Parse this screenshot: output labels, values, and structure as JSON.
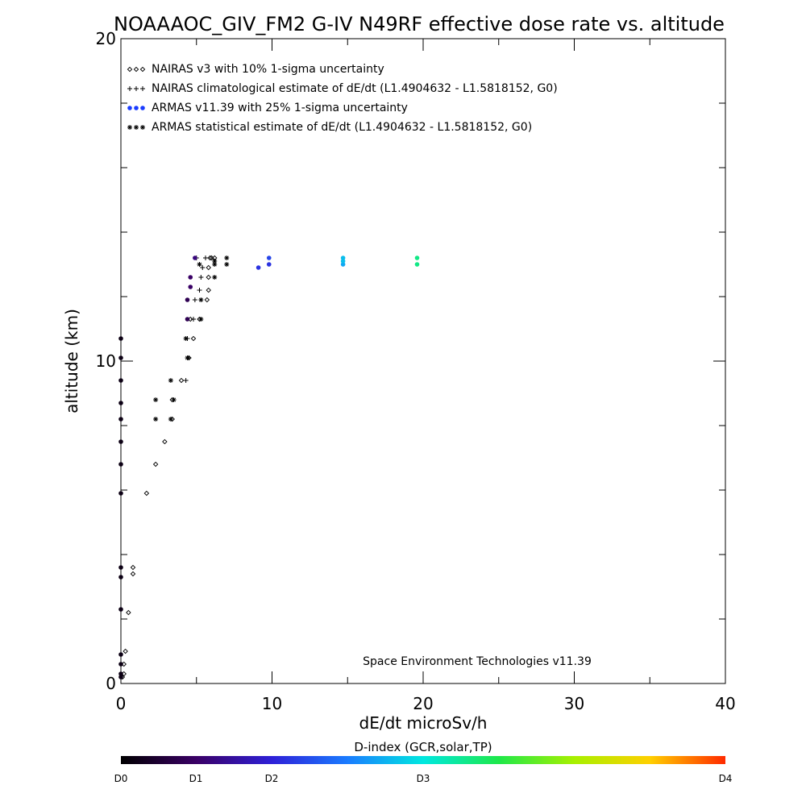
{
  "chart_data": {
    "type": "scatter",
    "title": "NOAAAOC_GIV_FM2 G-IV   N49RF  effective dose rate vs. altitude",
    "xlabel": "dE/dt microSv/h",
    "ylabel": "altitude (km)",
    "xlim": [
      0,
      40
    ],
    "ylim": [
      0,
      20
    ],
    "x_ticks": [
      0,
      10,
      20,
      30,
      40
    ],
    "y_ticks": [
      0,
      10,
      20
    ],
    "x_tick_labels": [
      "0",
      "10",
      "20",
      "30",
      "40"
    ],
    "y_tick_labels": [
      "0",
      "10",
      "20"
    ],
    "grid": false,
    "legend_position": "top-left",
    "annotation": "Space Environment Technologies v11.39",
    "legend": [
      {
        "label": "NAIRAS v3 with 10% 1-sigma uncertainty",
        "marker": "diamond"
      },
      {
        "label": "NAIRAS climatological estimate of dE/dt (L1.4904632 - L1.5818152, G0)",
        "marker": "plus"
      },
      {
        "label": "ARMAS v11.39 with 25% 1-sigma uncertainty",
        "marker": "dot"
      },
      {
        "label": "ARMAS statistical estimate of dE/dt (L1.4904632 - L1.5818152, G0)",
        "marker": "asterisk"
      }
    ],
    "colorbar": {
      "title": "D-index (GCR,solar,TP)",
      "labels": [
        "D0",
        "D1",
        "D2",
        "D3",
        "D4"
      ],
      "label_values": [
        0,
        1,
        2,
        3,
        4
      ],
      "range": [
        0,
        4
      ]
    },
    "series": [
      {
        "marker": "diamond",
        "points": [
          [
            0.1,
            0.2
          ],
          [
            0.2,
            0.3
          ],
          [
            0.2,
            0.6
          ],
          [
            0.3,
            1.0
          ],
          [
            0.5,
            2.2
          ],
          [
            0.8,
            3.4
          ],
          [
            0.8,
            3.6
          ],
          [
            1.7,
            5.9
          ],
          [
            2.3,
            6.8
          ],
          [
            2.9,
            7.5
          ],
          [
            3.4,
            8.2
          ],
          [
            3.4,
            8.8
          ],
          [
            4.0,
            9.4
          ],
          [
            4.5,
            10.1
          ],
          [
            4.8,
            10.7
          ],
          [
            4.6,
            11.3
          ],
          [
            5.2,
            11.3
          ],
          [
            5.7,
            11.9
          ],
          [
            5.8,
            12.2
          ],
          [
            5.8,
            12.6
          ],
          [
            5.8,
            12.9
          ],
          [
            5.9,
            13.2
          ],
          [
            6.0,
            13.2
          ],
          [
            6.2,
            13.2
          ]
        ]
      },
      {
        "marker": "plus",
        "points": [
          [
            4.3,
            9.4
          ],
          [
            4.5,
            10.1
          ],
          [
            4.4,
            10.7
          ],
          [
            4.8,
            11.3
          ],
          [
            4.9,
            11.9
          ],
          [
            5.2,
            12.2
          ],
          [
            5.3,
            12.6
          ],
          [
            5.0,
            13.2
          ],
          [
            5.4,
            12.9
          ],
          [
            5.6,
            13.2
          ]
        ]
      },
      {
        "marker": "dot",
        "points": [
          [
            0.0,
            0.2
          ],
          [
            0.0,
            0.3
          ],
          [
            0.0,
            0.6
          ],
          [
            0.0,
            0.9
          ],
          [
            0.0,
            2.3
          ],
          [
            0.0,
            3.3
          ],
          [
            0.0,
            3.6
          ],
          [
            0.0,
            5.9
          ],
          [
            0.0,
            6.8
          ],
          [
            0.0,
            7.5
          ],
          [
            0.0,
            8.2
          ],
          [
            0.0,
            8.7
          ],
          [
            0.0,
            9.4
          ],
          [
            0.0,
            10.1
          ],
          [
            0.0,
            10.7
          ],
          [
            4.4,
            11.3
          ],
          [
            4.4,
            11.9
          ],
          [
            4.6,
            12.3
          ],
          [
            4.6,
            12.6
          ],
          [
            4.9,
            13.2
          ],
          [
            9.1,
            12.9
          ],
          [
            9.8,
            13.2
          ],
          [
            9.8,
            13.0
          ],
          [
            14.7,
            13.2
          ],
          [
            14.7,
            13.0
          ],
          [
            14.7,
            13.1
          ],
          [
            19.6,
            13.2
          ],
          [
            19.6,
            13.0
          ]
        ],
        "d_index": [
          0.1,
          0.1,
          0.1,
          0.1,
          0.1,
          0.1,
          0.1,
          0.1,
          0.1,
          0.1,
          0.1,
          0.1,
          0.1,
          0.1,
          0.1,
          0.4,
          0.4,
          0.5,
          0.5,
          0.6,
          1.1,
          1.2,
          1.1,
          1.8,
          1.7,
          1.8,
          2.3,
          2.3
        ]
      },
      {
        "marker": "asterisk",
        "points": [
          [
            2.3,
            8.2
          ],
          [
            2.3,
            8.8
          ],
          [
            3.3,
            8.2
          ],
          [
            3.5,
            8.8
          ],
          [
            3.3,
            9.4
          ],
          [
            4.4,
            10.1
          ],
          [
            4.3,
            10.7
          ],
          [
            5.3,
            11.3
          ],
          [
            5.3,
            11.9
          ],
          [
            6.2,
            12.6
          ],
          [
            6.2,
            13.0
          ],
          [
            7.0,
            13.0
          ],
          [
            7.0,
            13.2
          ],
          [
            5.2,
            13.0
          ],
          [
            6.2,
            13.1
          ]
        ]
      }
    ]
  }
}
